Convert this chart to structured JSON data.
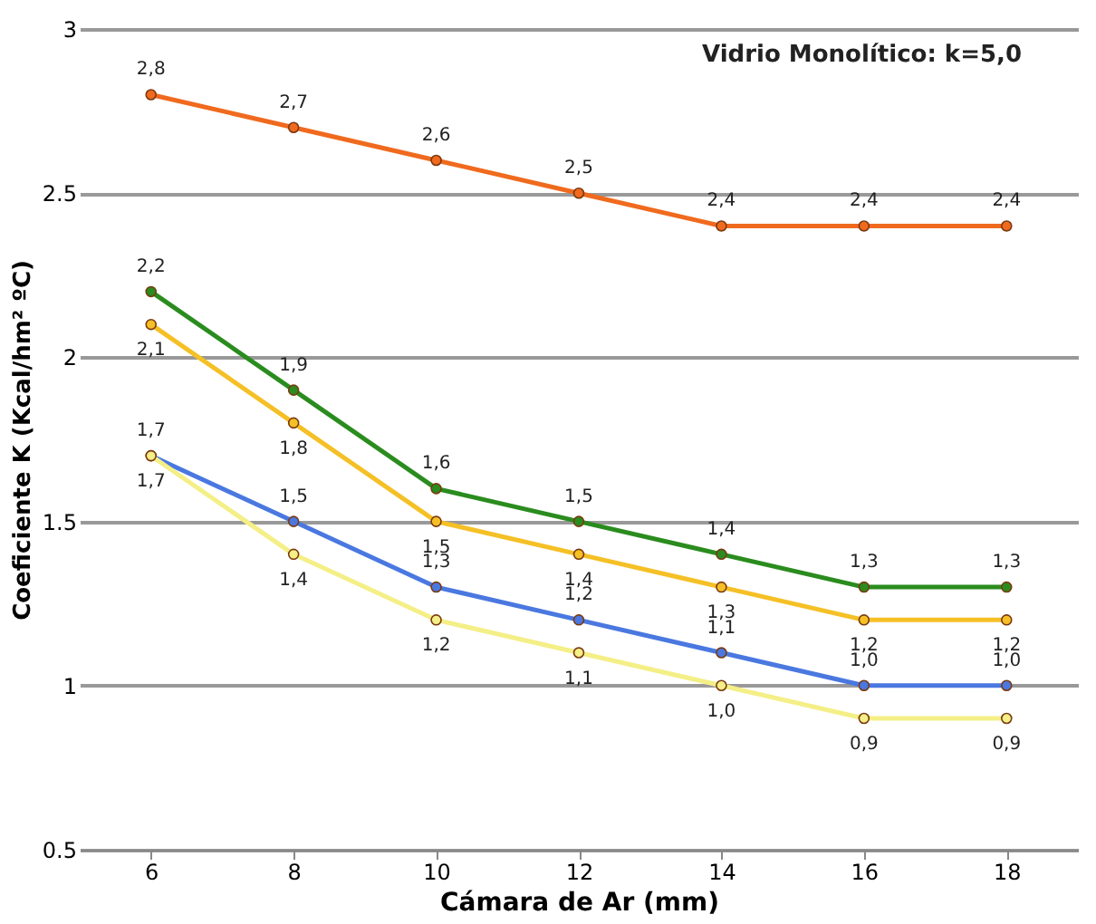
{
  "chart_data": {
    "type": "line",
    "xlabel": "Cámara de Ar (mm)",
    "ylabel": "Coeficiente K (Kcal/hm² ºC)",
    "annotations": [
      "Vidrio Monolítico: k=5,0"
    ],
    "x": [
      6,
      8,
      10,
      12,
      14,
      16,
      18
    ],
    "xlim": [
      5,
      19
    ],
    "xticks": [
      6,
      8,
      10,
      12,
      14,
      16,
      18
    ],
    "ylim": [
      0.5,
      3
    ],
    "yticks": [
      0.5,
      1,
      1.5,
      2,
      2.5,
      3
    ],
    "grid": "y",
    "marker": "circle",
    "series": [
      {
        "color": "#f06a1e",
        "values": [
          2.8,
          2.7,
          2.6,
          2.5,
          2.4,
          2.4,
          2.4
        ],
        "value_labels": [
          "2,8",
          "2,7",
          "2,6",
          "2,5",
          "2,4",
          "2,4",
          "2,4"
        ]
      },
      {
        "color": "#2a8c1e",
        "values": [
          2.2,
          1.9,
          1.6,
          1.5,
          1.4,
          1.3,
          1.3
        ],
        "value_labels": [
          "2,2",
          "1,9",
          "1,6",
          "1,5",
          "1,4",
          "1,3",
          "1,3"
        ]
      },
      {
        "color": "#f5c026",
        "values": [
          2.1,
          1.8,
          1.5,
          1.4,
          1.3,
          1.2,
          1.2
        ],
        "value_labels": [
          "2,1",
          "1,8",
          "1,5",
          "1,4",
          "1,3",
          "1,2",
          "1,2"
        ]
      },
      {
        "color": "#4a78e0",
        "values": [
          1.7,
          1.5,
          1.3,
          1.2,
          1.1,
          1.0,
          1.0
        ],
        "value_labels": [
          "1,7",
          "1,5",
          "1,3",
          "1,2",
          "1,1",
          "1,0",
          "1,0"
        ]
      },
      {
        "color": "#f4ef86",
        "values": [
          1.7,
          1.4,
          1.2,
          1.1,
          1.0,
          0.9,
          0.9
        ],
        "value_labels": [
          "1,7",
          "1,4",
          "1,2",
          "1,1",
          "1,0",
          "0,9",
          "0,9"
        ]
      }
    ]
  }
}
